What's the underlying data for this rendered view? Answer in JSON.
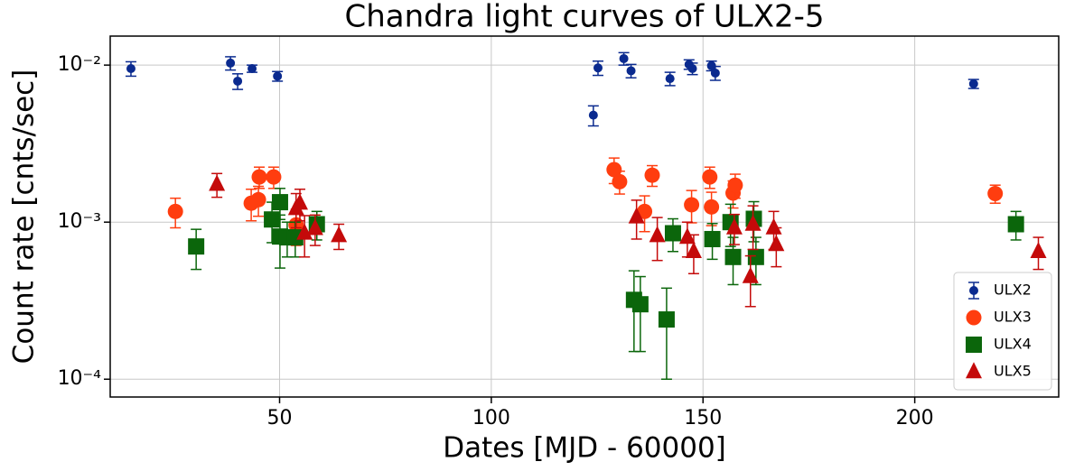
{
  "chart_data": {
    "type": "scatter",
    "title": "Chandra light curves of ULX2-5",
    "x_label": "Dates [MJD - 60000]",
    "y_label": "Count rate [cnts/sec]",
    "xlim": [
      10,
      234
    ],
    "xticks": [
      50,
      100,
      150,
      200
    ],
    "ylim": [
      7.7e-05,
      0.0153
    ],
    "log_y": true,
    "yticks": [
      {
        "value": 0.0001,
        "label": "10⁻⁴"
      },
      {
        "value": 0.001,
        "label": "10⁻³"
      },
      {
        "value": 0.01,
        "label": "10⁻²"
      }
    ],
    "grid": true,
    "legend": "lower right",
    "series": [
      {
        "name": "ULX2",
        "color": "#0a2a8f",
        "marker": "circle",
        "x": [
          14.9,
          38.4,
          40.1,
          43.5,
          49.5,
          124.1,
          125.2,
          131.3,
          133,
          142.2,
          146.7,
          147.5,
          152,
          152.9,
          213.9
        ],
        "values": [
          0.0095,
          0.0103,
          0.0079,
          0.0095,
          0.0085,
          0.0048,
          0.0096,
          0.011,
          0.0092,
          0.0082,
          0.0101,
          0.0095,
          0.0099,
          0.0089,
          0.0076
        ],
        "errors": [
          0.001,
          0.001,
          0.0009,
          0.0005,
          0.0006,
          0.0007,
          0.001,
          0.001,
          0.0009,
          0.0008,
          0.0007,
          0.0008,
          0.0007,
          0.0009,
          0.0005
        ]
      },
      {
        "name": "ULX3",
        "color": "#ff3d0f",
        "marker": "circle",
        "x": [
          25.4,
          43.3,
          45.0,
          45.2,
          48.6,
          53.9,
          129,
          130.3,
          136.2,
          138,
          147.3,
          151.6,
          152,
          157.1,
          157.6,
          219
        ],
        "values": [
          0.00117,
          0.00132,
          0.00139,
          0.00194,
          0.00194,
          0.00096,
          0.00216,
          0.00181,
          0.00117,
          0.00199,
          0.00129,
          0.00194,
          0.00125,
          0.00153,
          0.00172,
          0.00152
        ],
        "errors": [
          0.00025,
          0.0003,
          0.0003,
          0.0003,
          0.0003,
          0.00025,
          0.0004,
          0.0003,
          0.0003,
          0.0003,
          0.0003,
          0.0003,
          0.0003,
          0.0003,
          0.0003,
          0.0002
        ]
      },
      {
        "name": "ULX4",
        "color": "#0b660b",
        "marker": "square",
        "x": [
          30.3,
          48.2,
          50.1,
          50.1,
          51.8,
          53.7,
          58.8,
          133.7,
          135.2,
          141.4,
          142.9,
          152.2,
          156.5,
          157.1,
          162.0,
          162.5,
          223.9
        ],
        "values": [
          0.0007,
          0.00104,
          0.00134,
          0.00081,
          0.0008,
          0.0008,
          0.00097,
          0.00032,
          0.0003,
          0.00024,
          0.00085,
          0.00078,
          0.001,
          0.0006,
          0.00105,
          0.0006,
          0.00097
        ],
        "errors": [
          0.0002,
          0.0003,
          0.0003,
          0.0003,
          0.0002,
          0.0002,
          0.0002,
          0.00017,
          0.00015,
          0.00014,
          0.0002,
          0.0002,
          0.0003,
          0.0002,
          0.0003,
          0.0002,
          0.0002
        ]
      },
      {
        "name": "ULX5",
        "color": "#c40a0a",
        "marker": "triangle",
        "x": [
          35.2,
          53.9,
          54.8,
          55.9,
          58.4,
          64,
          134.3,
          139.2,
          146.3,
          147.8,
          157.4,
          161.2,
          161.8,
          166.7,
          167.3,
          229.2
        ],
        "values": [
          0.00174,
          0.00122,
          0.00132,
          0.00085,
          0.00091,
          0.00082,
          0.00108,
          0.00082,
          0.0008,
          0.00065,
          0.00092,
          0.00045,
          0.00097,
          0.00092,
          0.00072,
          0.00065
        ],
        "errors": [
          0.0003,
          0.0003,
          0.0003,
          0.00025,
          0.0002,
          0.00015,
          0.0003,
          0.00025,
          0.0002,
          0.00018,
          0.0002,
          0.00016,
          0.0003,
          0.00025,
          0.0002,
          0.00015
        ]
      }
    ]
  }
}
